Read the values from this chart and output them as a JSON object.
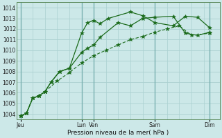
{
  "bg_color": "#cce8e8",
  "grid_color": "#aad0d0",
  "line_color": "#1a6a1a",
  "xlabel": "Pression niveau de la mer( hPa )",
  "ylim": [
    1003.5,
    1014.5
  ],
  "xlim": [
    -0.3,
    16.3
  ],
  "yticks": [
    1004,
    1005,
    1006,
    1007,
    1008,
    1009,
    1010,
    1011,
    1012,
    1013,
    1014
  ],
  "xtick_labels": [
    "Jeu",
    "Lun",
    "Ven",
    "Sam",
    "Dim"
  ],
  "xtick_positions": [
    0,
    5,
    6,
    11,
    15.5
  ],
  "vlines_major": [
    0,
    5,
    6,
    11,
    15.5
  ],
  "vlines_minor": [
    1,
    2,
    3,
    4,
    7,
    8,
    9,
    10,
    12,
    13,
    14,
    15
  ],
  "line_diag_x": [
    0,
    0.5,
    1.0,
    1.5,
    2.0,
    3.0,
    4.0,
    5.0,
    6.0,
    7.0,
    8.0,
    9.0,
    10.0,
    11.0,
    12.0,
    13.0,
    14.0,
    15.5
  ],
  "line_diag_y": [
    1003.8,
    1004.1,
    1005.5,
    1005.7,
    1006.1,
    1007.1,
    1007.9,
    1008.8,
    1009.5,
    1010.0,
    1010.5,
    1011.0,
    1011.3,
    1011.7,
    1012.0,
    1012.3,
    1011.4,
    1011.6
  ],
  "line_mid_x": [
    0,
    0.5,
    1.0,
    1.5,
    2.0,
    2.5,
    3.2,
    4.0,
    5.0,
    5.5,
    6.0,
    6.5,
    8.0,
    9.0,
    10.0,
    11.0,
    12.5,
    13.5,
    14.5,
    15.5
  ],
  "line_mid_y": [
    1003.8,
    1004.1,
    1005.5,
    1005.7,
    1006.1,
    1007.0,
    1008.0,
    1008.3,
    1009.8,
    1010.2,
    1010.5,
    1011.2,
    1012.6,
    1012.3,
    1013.0,
    1013.1,
    1013.2,
    1011.6,
    1011.4,
    1011.7
  ],
  "line_top_x": [
    0,
    0.5,
    1.0,
    1.5,
    2.0,
    2.5,
    3.2,
    4.0,
    5.0,
    5.5,
    6.0,
    6.5,
    7.2,
    9.0,
    10.0,
    11.0,
    12.5,
    13.5,
    14.5,
    15.5
  ],
  "line_top_y": [
    1003.8,
    1004.1,
    1005.5,
    1005.7,
    1006.1,
    1007.0,
    1008.0,
    1008.3,
    1011.6,
    1012.6,
    1012.8,
    1012.5,
    1013.0,
    1013.6,
    1013.25,
    1012.6,
    1012.3,
    1013.2,
    1013.1,
    1012.1
  ]
}
